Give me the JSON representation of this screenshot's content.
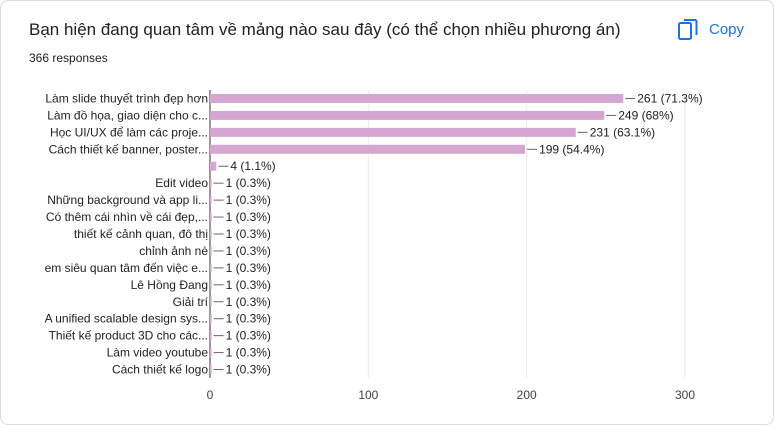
{
  "header": {
    "title": "Bạn hiện đang quan tâm về mảng nào sau đây (có thể chọn nhiều phương án)",
    "responses": "366 responses",
    "copy_label": "Copy",
    "copy_icon": "copy-icon"
  },
  "colors": {
    "bar": "#d5a6d1",
    "accent": "#1a73e8",
    "axis": "#333333",
    "grid": "#ebebeb"
  },
  "chart_data": {
    "type": "bar",
    "orientation": "horizontal",
    "title": "Bạn hiện đang quan tâm về mảng nào sau đây (có thể chọn nhiều phương án)",
    "xlim": [
      0,
      300
    ],
    "x_ticks": [
      "0",
      "100",
      "200",
      "300"
    ],
    "grid": true,
    "categories": [
      "Làm slide thuyết trình đẹp hơn",
      "Làm đồ họa, giao diện cho c...",
      "Học UI/UX để làm các proje...",
      "Cách thiết kế banner, poster...",
      "",
      "Edit video",
      "Những background và app li...",
      "Có thêm cái nhìn về cái đẹp,...",
      "thiết kế cảnh quan, đô thị",
      "chỉnh ảnh nè",
      "em siêu quan tâm đến việc e...",
      "Lê Hồng Đang",
      "Giải trí",
      "A unified scalable design sys...",
      "Thiết kế product 3D cho các...",
      "Làm video youtube",
      "Cách thiết kế logo"
    ],
    "values": [
      261,
      249,
      231,
      199,
      4,
      1,
      1,
      1,
      1,
      1,
      1,
      1,
      1,
      1,
      1,
      1,
      1
    ],
    "value_labels": [
      "261 (71.3%)",
      "249 (68%)",
      "231 (63.1%)",
      "199 (54.4%)",
      "4 (1.1%)",
      "1 (0.3%)",
      "1 (0.3%)",
      "1 (0.3%)",
      "1 (0.3%)",
      "1 (0.3%)",
      "1 (0.3%)",
      "1 (0.3%)",
      "1 (0.3%)",
      "1 (0.3%)",
      "1 (0.3%)",
      "1 (0.3%)",
      "1 (0.3%)"
    ]
  }
}
